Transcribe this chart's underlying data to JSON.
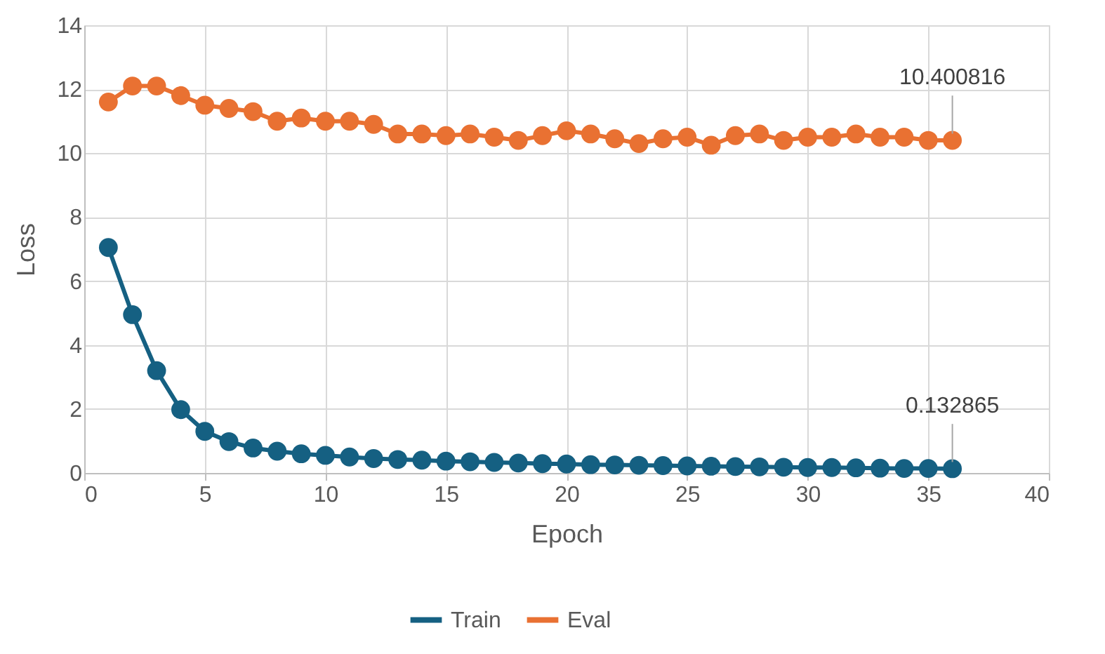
{
  "chart_data": {
    "type": "line",
    "xlabel": "Epoch",
    "ylabel": "Loss",
    "x": [
      1,
      2,
      3,
      4,
      5,
      6,
      7,
      8,
      9,
      10,
      11,
      12,
      13,
      14,
      15,
      16,
      17,
      18,
      19,
      20,
      21,
      22,
      23,
      24,
      25,
      26,
      27,
      28,
      29,
      30,
      31,
      32,
      33,
      34,
      35,
      36
    ],
    "series": [
      {
        "name": "Train",
        "color": "#156082",
        "values": [
          7.05,
          4.95,
          3.2,
          1.98,
          1.3,
          0.98,
          0.78,
          0.68,
          0.6,
          0.55,
          0.5,
          0.45,
          0.42,
          0.4,
          0.37,
          0.35,
          0.33,
          0.31,
          0.29,
          0.28,
          0.26,
          0.25,
          0.24,
          0.23,
          0.22,
          0.21,
          0.2,
          0.19,
          0.18,
          0.17,
          0.17,
          0.16,
          0.15,
          0.14,
          0.14,
          0.132865
        ]
      },
      {
        "name": "Eval",
        "color": "#e97132",
        "values": [
          11.6,
          12.1,
          12.1,
          11.8,
          11.5,
          11.4,
          11.3,
          11.0,
          11.1,
          11.0,
          11.0,
          10.9,
          10.6,
          10.6,
          10.55,
          10.6,
          10.5,
          10.4,
          10.55,
          10.7,
          10.6,
          10.45,
          10.3,
          10.45,
          10.5,
          10.25,
          10.55,
          10.6,
          10.4,
          10.5,
          10.5,
          10.6,
          10.5,
          10.5,
          10.4,
          10.400816
        ]
      }
    ],
    "annotations": [
      {
        "text": "10.400816",
        "x": 36,
        "y": 10.400816
      },
      {
        "text": "0.132865",
        "x": 36,
        "y": 0.132865
      }
    ],
    "xlim": [
      0,
      40
    ],
    "xticks": [
      0,
      5,
      10,
      15,
      20,
      25,
      30,
      35,
      40
    ],
    "ylim": [
      0,
      14
    ],
    "yticks": [
      0,
      2,
      4,
      6,
      8,
      10,
      12,
      14
    ],
    "grid": true,
    "legend": "bottom",
    "marker": "circle",
    "line_style": "solid"
  }
}
